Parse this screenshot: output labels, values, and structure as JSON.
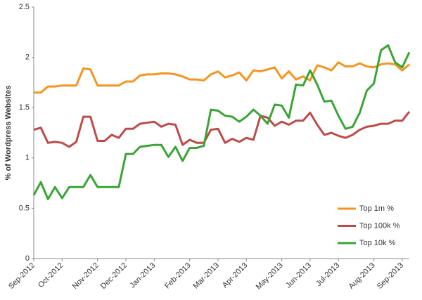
{
  "chart_data": {
    "type": "line",
    "y_label": "% of Wordpress Websites",
    "categories": [
      "Sep-2012",
      null,
      null,
      null,
      "Oct-2012",
      null,
      null,
      null,
      null,
      "Nov-2012",
      null,
      null,
      null,
      "Dec-2012",
      null,
      null,
      null,
      "Jan-2013",
      null,
      null,
      null,
      null,
      "Feb-2013",
      null,
      null,
      null,
      "Mar-2013",
      null,
      null,
      null,
      "Apr-2013",
      null,
      null,
      null,
      null,
      "May-2013",
      null,
      null,
      null,
      "Jun-2013",
      null,
      null,
      null,
      "Jul-2013",
      null,
      null,
      null,
      null,
      "Aug-2013",
      null,
      null,
      null,
      "Sep-2013",
      null
    ],
    "series": [
      {
        "name": "Top 1m %",
        "color": "#f7941d",
        "values": [
          1.65,
          1.65,
          1.71,
          1.71,
          1.72,
          1.72,
          1.72,
          1.89,
          1.88,
          1.72,
          1.72,
          1.72,
          1.72,
          1.76,
          1.76,
          1.82,
          1.83,
          1.83,
          1.84,
          1.84,
          1.83,
          1.81,
          1.78,
          1.78,
          1.77,
          1.83,
          1.86,
          1.8,
          1.82,
          1.85,
          1.77,
          1.87,
          1.86,
          1.88,
          1.9,
          1.79,
          1.86,
          1.78,
          1.81,
          1.77,
          1.92,
          1.9,
          1.87,
          1.95,
          1.91,
          1.91,
          1.94,
          1.91,
          1.9,
          1.93,
          1.94,
          1.93,
          1.87,
          1.93
        ]
      },
      {
        "name": "Top 100k %",
        "color": "#be4b48",
        "values": [
          1.28,
          1.3,
          1.15,
          1.16,
          1.15,
          1.11,
          1.16,
          1.41,
          1.41,
          1.17,
          1.17,
          1.23,
          1.2,
          1.29,
          1.29,
          1.34,
          1.35,
          1.36,
          1.31,
          1.34,
          1.33,
          1.13,
          1.18,
          1.15,
          1.15,
          1.28,
          1.29,
          1.15,
          1.19,
          1.16,
          1.2,
          1.18,
          1.42,
          1.4,
          1.32,
          1.36,
          1.33,
          1.37,
          1.37,
          1.45,
          1.33,
          1.23,
          1.25,
          1.22,
          1.2,
          1.23,
          1.28,
          1.31,
          1.32,
          1.34,
          1.34,
          1.37,
          1.37,
          1.46
        ]
      },
      {
        "name": "Top 10k %",
        "color": "#3aa535",
        "values": [
          0.63,
          0.76,
          0.59,
          0.71,
          0.6,
          0.71,
          0.71,
          0.71,
          0.83,
          0.71,
          0.71,
          0.71,
          0.71,
          1.04,
          1.04,
          1.11,
          1.12,
          1.13,
          1.13,
          1.01,
          1.11,
          0.97,
          1.1,
          1.1,
          1.12,
          1.48,
          1.47,
          1.42,
          1.41,
          1.36,
          1.41,
          1.48,
          1.42,
          1.34,
          1.53,
          1.52,
          1.4,
          1.73,
          1.72,
          1.87,
          1.73,
          1.56,
          1.57,
          1.42,
          1.29,
          1.31,
          1.45,
          1.67,
          1.74,
          2.07,
          2.12,
          1.95,
          1.9,
          2.05
        ]
      }
    ],
    "ylim": [
      0,
      2.5
    ],
    "yticks": [
      0,
      0.5,
      1,
      1.5,
      2,
      2.5
    ],
    "grid": false,
    "legend": "lower right"
  }
}
